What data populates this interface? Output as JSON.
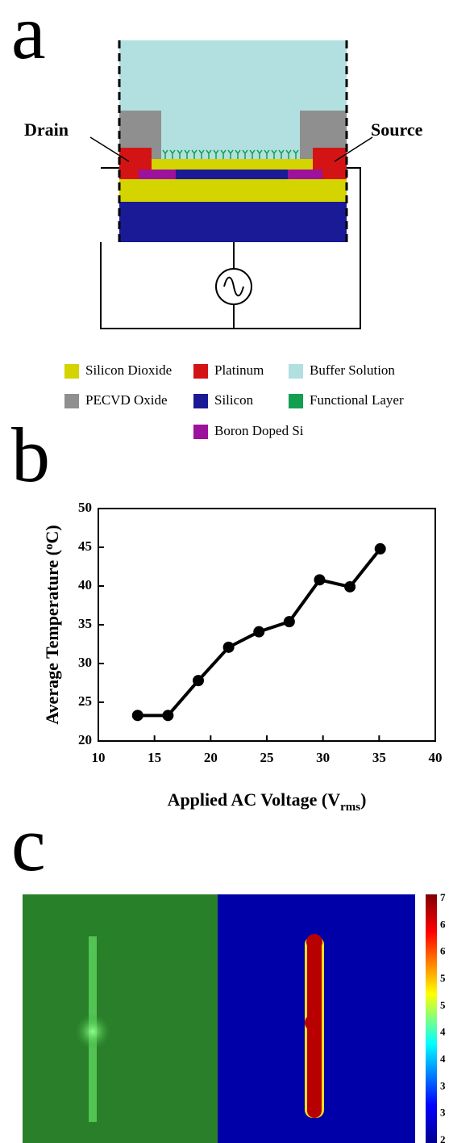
{
  "panel_labels": [
    "a",
    "b",
    "c"
  ],
  "diagram": {
    "drain": "Drain",
    "source": "Source",
    "legend": [
      {
        "name": "Silicon Dioxide",
        "color": "#d4d400"
      },
      {
        "name": "Platinum",
        "color": "#d41414"
      },
      {
        "name": "Buffer Solution",
        "color": "#b2dfe0"
      },
      {
        "name": "PECVD Oxide",
        "color": "#8f8f8f"
      },
      {
        "name": "Silicon",
        "color": "#1a1a96"
      },
      {
        "name": "Functional Layer",
        "color": "#12a050"
      },
      {
        "name": "Boron Doped Si",
        "color": "#9c129c"
      }
    ]
  },
  "chart_data": {
    "type": "line",
    "xlabel": {
      "text": "Applied AC Voltage (V",
      "sub": "rms",
      "tail": ")"
    },
    "ylabel": {
      "text": "Average Temperature (",
      "sup": "o",
      "tail": "C)"
    },
    "x": [
      13.5,
      16.2,
      18.9,
      21.6,
      24.3,
      27,
      29.7,
      32.4,
      35.1
    ],
    "series": [
      {
        "color": "#000000",
        "values": [
          23.3,
          23.3,
          27.8,
          32.1,
          34.1,
          35.4,
          40.8,
          39.9,
          44.8
        ]
      }
    ],
    "xlim": [
      10,
      40
    ],
    "xticks": [
      10,
      15,
      20,
      25,
      30,
      35,
      40
    ],
    "ylim": [
      20,
      50
    ],
    "yticks": [
      20,
      25,
      30,
      35,
      40,
      45,
      50
    ]
  },
  "colorbar": {
    "labels": [
      "7",
      "6",
      "6",
      "5",
      "5",
      "4",
      "4",
      "3",
      "3",
      "2"
    ]
  }
}
